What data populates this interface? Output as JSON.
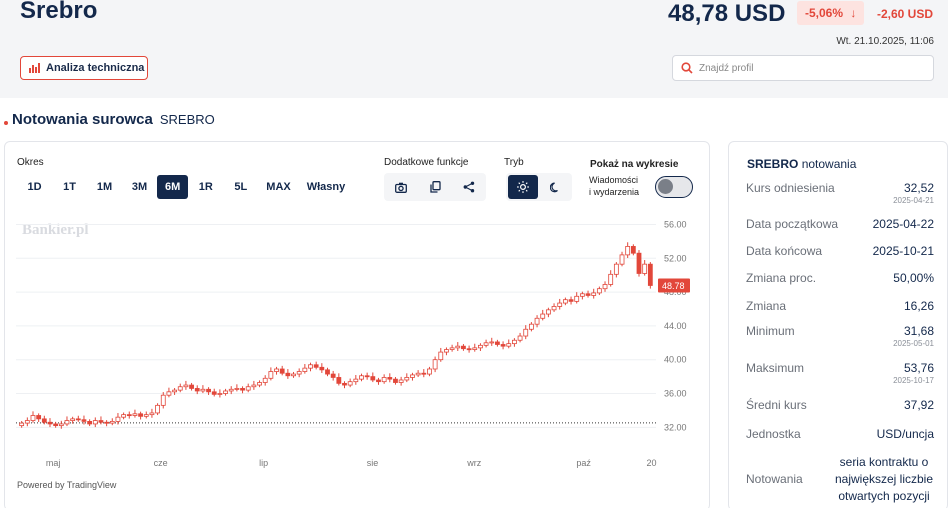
{
  "header": {
    "title": "Srebro",
    "price": "48,78 USD",
    "change_pct": "-5,06%",
    "change_abs": "-2,60 USD",
    "datetime": "Wt. 21.10.2025, 11:06",
    "ta_button": "Analiza techniczna",
    "search_placeholder": "Znajdź profil"
  },
  "section": {
    "title": "Notowania surowca",
    "subtitle": "SREBRO"
  },
  "controls": {
    "period_label": "Okres",
    "periods": [
      "1D",
      "1T",
      "1M",
      "3M",
      "6M",
      "1R",
      "5L",
      "MAX",
      "Własny"
    ],
    "active_period": "6M",
    "extra_label": "Dodatkowe funkcje",
    "mode_label": "Tryb",
    "show_label": "Pokaż na wykresie",
    "events_line1": "Wiadomości",
    "events_line2": "i wydarzenia"
  },
  "chart_data": {
    "type": "candlestick",
    "x_labels": [
      "maj",
      "cze",
      "lip",
      "sie",
      "wrz",
      "paź",
      "20"
    ],
    "y_ticks": [
      "56.00",
      "52.00",
      "48.00",
      "44.00",
      "40.00",
      "36.00",
      "32.00"
    ],
    "ylim": [
      30.5,
      57
    ],
    "reference_line": 32.52,
    "last_label": "48.78",
    "watermark": "Bankier.pl",
    "powered_by": "Powered by TradingView",
    "closes": [
      32.5,
      32.8,
      33.4,
      33.0,
      32.6,
      32.4,
      32.2,
      32.4,
      32.8,
      33.0,
      32.9,
      32.7,
      32.4,
      32.8,
      32.6,
      32.5,
      32.7,
      33.2,
      33.5,
      33.4,
      33.6,
      33.3,
      33.5,
      33.7,
      34.6,
      35.8,
      36.2,
      36.4,
      36.8,
      37.0,
      36.6,
      36.3,
      36.5,
      36.2,
      35.9,
      36.0,
      36.3,
      36.5,
      36.6,
      36.4,
      36.8,
      37.0,
      37.3,
      37.8,
      38.6,
      38.9,
      38.4,
      38.1,
      38.3,
      38.6,
      39.0,
      39.4,
      39.1,
      38.8,
      38.3,
      37.9,
      37.2,
      37.0,
      37.4,
      37.7,
      38.1,
      38.0,
      37.6,
      37.4,
      37.9,
      37.7,
      37.3,
      37.6,
      37.9,
      38.2,
      38.4,
      38.3,
      38.9,
      40.0,
      40.9,
      41.2,
      41.4,
      41.6,
      41.3,
      41.2,
      41.4,
      41.7,
      42.0,
      42.1,
      41.8,
      41.6,
      41.9,
      42.3,
      42.8,
      43.6,
      44.2,
      44.9,
      45.4,
      45.9,
      46.3,
      46.7,
      47.1,
      46.9,
      47.5,
      47.8,
      47.6,
      47.9,
      48.4,
      48.9,
      50.1,
      51.3,
      52.4,
      53.4,
      52.6,
      50.2,
      51.3,
      48.78
    ]
  },
  "sidebar": {
    "title_bold": "SREBRO",
    "title_rest": "notowania",
    "rows": [
      {
        "label": "Kurs odniesienia",
        "value": "32,52",
        "sub": "2025-04-21"
      },
      {
        "label": "Data początkowa",
        "value": "2025-04-22",
        "sub": ""
      },
      {
        "label": "Data końcowa",
        "value": "2025-10-21",
        "sub": ""
      },
      {
        "label": "Zmiana proc.",
        "value": "50,00%",
        "sub": ""
      },
      {
        "label": "Zmiana",
        "value": "16,26",
        "sub": ""
      },
      {
        "label": "Minimum",
        "value": "31,68",
        "sub": "2025-05-01"
      },
      {
        "label": "Maksimum",
        "value": "53,76",
        "sub": "2025-10-17"
      },
      {
        "label": "Średni kurs",
        "value": "37,92",
        "sub": ""
      },
      {
        "label": "Jednostka",
        "value": "USD/uncja",
        "sub": ""
      },
      {
        "label": "Notowania",
        "value_lines": [
          "seria kontraktu o",
          "największej liczbie",
          "otwartych pozycji"
        ]
      }
    ]
  },
  "colors": {
    "accent": "#e2473a",
    "navy": "#13284b"
  }
}
